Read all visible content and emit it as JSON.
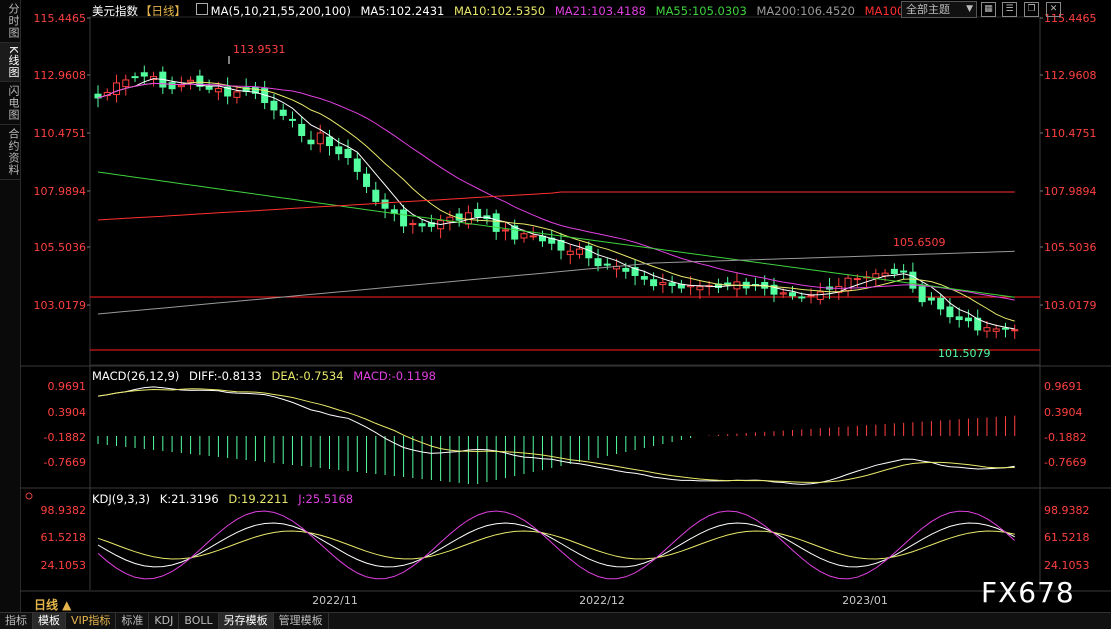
{
  "side_tabs": [
    "分时图",
    "K线图",
    "闪电图",
    "合约资料"
  ],
  "side_active": 1,
  "main_legend": {
    "title": "美元指数",
    "period": "【日线】",
    "ma_params": "MA(5,10,21,55,200,100)",
    "ma5": "MA5:102.2431",
    "ma10": "MA10:102.5350",
    "ma21": "MA21:103.4188",
    "ma55": "MA55:105.0303",
    "ma200": "MA200:106.4520",
    "ma100": "MA100"
  },
  "theme_select": "全部主题",
  "toolbar_icons": [
    "grid-icon",
    "menu-icon",
    "restore-icon",
    "close-icon"
  ],
  "price_axis": [
    "115.4465",
    "112.9608",
    "110.4751",
    "107.9894",
    "105.5036",
    "103.0179"
  ],
  "annotations": {
    "high": "113.9531",
    "mid_high": "105.6509",
    "low": "101.5079"
  },
  "macd_legend": {
    "params": "MACD(26,12,9)",
    "diff": "DIFF:-0.8133",
    "dea": "DEA:-0.7534",
    "macd": "MACD:-0.1198"
  },
  "macd_axis": [
    "0.9691",
    "0.3904",
    "-0.1882",
    "-0.7669"
  ],
  "kdj_legend": {
    "params": "KDJ(9,3,3)",
    "k": "K:21.3196",
    "d": "D:19.2211",
    "j": "J:25.5168"
  },
  "kdj_axis": [
    "98.9382",
    "61.5218",
    "24.1053"
  ],
  "date_labels": [
    "2022/11",
    "2022/12",
    "2023/01"
  ],
  "period_label": "日线 ▲",
  "bottom_tabs": [
    "指标",
    "模板",
    "VIP指标",
    "标准",
    "KDJ",
    "BOLL",
    "另存模板",
    "管理模板"
  ],
  "bottom_active": [
    1,
    6
  ],
  "watermark": "FX678",
  "colors": {
    "up": "#ff4040",
    "down": "#54ffa0",
    "ma5": "#ffffff",
    "ma10": "#e8e86a",
    "ma21": "#e040e0",
    "ma55": "#3fd23f",
    "ma200": "#9a9a9a",
    "ma100": "#ff3030"
  }
}
